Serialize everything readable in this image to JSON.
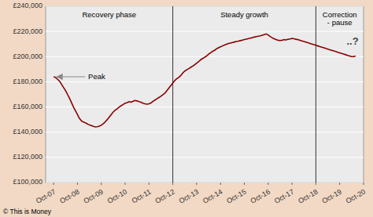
{
  "chart_data": {
    "type": "line",
    "color": "#8b0000",
    "grid": true,
    "xlim": [
      -4,
      156
    ],
    "xticks": [
      {
        "value": 0,
        "label": "Oct-07"
      },
      {
        "value": 12,
        "label": "Oct-08"
      },
      {
        "value": 24,
        "label": "Oct-09"
      },
      {
        "value": 36,
        "label": "Oct-10"
      },
      {
        "value": 48,
        "label": "Oct-11"
      },
      {
        "value": 60,
        "label": "Oct-12"
      },
      {
        "value": 72,
        "label": "Oct-13"
      },
      {
        "value": 84,
        "label": "Oct-14"
      },
      {
        "value": 96,
        "label": "Oct-15"
      },
      {
        "value": 108,
        "label": "Oct-16"
      },
      {
        "value": 120,
        "label": "Oct-17"
      },
      {
        "value": 132,
        "label": "Oct-18"
      },
      {
        "value": 144,
        "label": "Oct-19"
      },
      {
        "value": 156,
        "label": "Oct-20"
      }
    ],
    "ylim": [
      100000,
      240000
    ],
    "yticks": [
      {
        "value": 100000,
        "label": "£100,000"
      },
      {
        "value": 120000,
        "label": "£120,000"
      },
      {
        "value": 140000,
        "label": "£140,000"
      },
      {
        "value": 160000,
        "label": "£160,000"
      },
      {
        "value": 180000,
        "label": "£180,000"
      },
      {
        "value": 200000,
        "label": "£200,000"
      },
      {
        "value": 220000,
        "label": "£220,000"
      },
      {
        "value": 240000,
        "label": "£240,000"
      }
    ],
    "vlines": [
      60,
      132
    ],
    "annotations": [
      "Recovery phase",
      "Steady growth",
      "Correction\n- pause",
      "..?",
      "Peak",
      "© This is Money"
    ],
    "x": [
      0,
      1,
      2,
      3,
      4,
      5,
      6,
      7,
      8,
      9,
      10,
      11,
      12,
      13,
      14,
      15,
      16,
      17,
      18,
      19,
      20,
      21,
      22,
      23,
      24,
      25,
      26,
      27,
      28,
      29,
      30,
      31,
      32,
      33,
      34,
      35,
      36,
      37,
      38,
      39,
      40,
      41,
      42,
      43,
      44,
      45,
      46,
      47,
      48,
      49,
      50,
      51,
      52,
      53,
      54,
      55,
      56,
      57,
      58,
      59,
      60,
      61,
      62,
      63,
      64,
      65,
      66,
      67,
      68,
      69,
      70,
      71,
      72,
      73,
      74,
      75,
      76,
      77,
      78,
      79,
      80,
      81,
      82,
      83,
      84,
      85,
      86,
      87,
      88,
      89,
      90,
      91,
      92,
      93,
      94,
      95,
      96,
      97,
      98,
      99,
      100,
      101,
      102,
      103,
      104,
      105,
      106,
      107,
      108,
      109,
      110,
      111,
      112,
      113,
      114,
      115,
      116,
      117,
      118,
      119,
      120,
      121,
      122,
      123,
      124,
      125,
      126,
      127,
      128,
      129,
      130,
      131,
      132,
      133,
      134,
      135,
      136,
      137,
      138,
      139,
      140,
      141,
      142,
      143,
      144,
      145,
      146,
      147,
      148,
      149,
      150,
      151,
      152
    ],
    "values": [
      184000,
      183500,
      182000,
      180500,
      178000,
      175500,
      173000,
      170000,
      167000,
      163500,
      160000,
      157000,
      154000,
      151000,
      149000,
      148000,
      147500,
      146500,
      145800,
      145200,
      144600,
      144200,
      144300,
      144800,
      145500,
      146800,
      148200,
      150000,
      152000,
      154000,
      156000,
      157500,
      158500,
      160000,
      161000,
      162000,
      163000,
      163500,
      164200,
      163800,
      164500,
      165200,
      164800,
      164200,
      163800,
      163000,
      162500,
      162200,
      162500,
      163200,
      164500,
      165500,
      166500,
      167500,
      168500,
      169800,
      171000,
      173000,
      175000,
      177000,
      179000,
      181000,
      182500,
      183500,
      185000,
      187000,
      188500,
      189500,
      190500,
      191500,
      192500,
      193500,
      194800,
      196000,
      197500,
      198500,
      199500,
      200500,
      202000,
      203000,
      204200,
      205000,
      206200,
      207000,
      207800,
      208500,
      209200,
      209800,
      210400,
      210800,
      211200,
      211600,
      212000,
      212300,
      212700,
      213100,
      213500,
      213900,
      214300,
      214700,
      215100,
      215500,
      215900,
      216200,
      216500,
      217000,
      217500,
      218000,
      217200,
      216000,
      215000,
      214200,
      213500,
      213000,
      212800,
      213000,
      213500,
      213200,
      213800,
      214000,
      214500,
      214200,
      213800,
      213500,
      213000,
      212500,
      212000,
      211500,
      211000,
      210500,
      210000,
      209500,
      209000,
      208500,
      208000,
      207500,
      207000,
      206500,
      206000,
      205500,
      205000,
      204500,
      204000,
      203500,
      203000,
      202500,
      202000,
      201500,
      201000,
      200500,
      200000,
      200000,
      200500
    ]
  }
}
